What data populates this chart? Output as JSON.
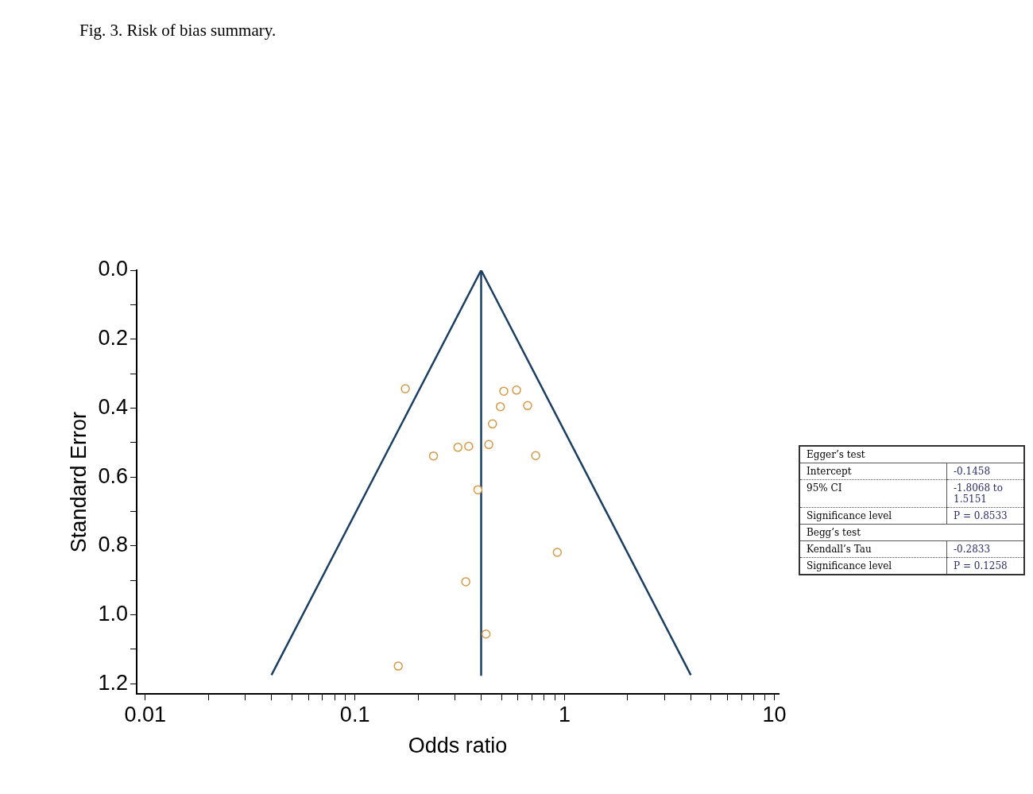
{
  "chart_data": {
    "type": "scatter",
    "xlabel": "Odds ratio",
    "ylabel": "Standard Error",
    "log": "x",
    "grid": false,
    "legend": false,
    "xlim": [
      0.0091,
      10.5
    ],
    "xticks": [
      {
        "value": 0.01,
        "label": "0.01"
      },
      {
        "value": 0.02,
        "label": null
      },
      {
        "value": 0.03,
        "label": null
      },
      {
        "value": 0.04,
        "label": null
      },
      {
        "value": 0.05,
        "label": null
      },
      {
        "value": 0.06,
        "label": null
      },
      {
        "value": 0.07,
        "label": null
      },
      {
        "value": 0.08,
        "label": null
      },
      {
        "value": 0.09,
        "label": null
      },
      {
        "value": 0.1,
        "label": "0.1"
      },
      {
        "value": 0.2,
        "label": null
      },
      {
        "value": 0.3,
        "label": null
      },
      {
        "value": 0.4,
        "label": null
      },
      {
        "value": 0.5,
        "label": null
      },
      {
        "value": 0.6,
        "label": null
      },
      {
        "value": 0.7,
        "label": null
      },
      {
        "value": 0.8,
        "label": null
      },
      {
        "value": 0.9,
        "label": null
      },
      {
        "value": 1,
        "label": "1"
      },
      {
        "value": 2,
        "label": null
      },
      {
        "value": 3,
        "label": null
      },
      {
        "value": 4,
        "label": null
      },
      {
        "value": 5,
        "label": null
      },
      {
        "value": 6,
        "label": null
      },
      {
        "value": 7,
        "label": null
      },
      {
        "value": 8,
        "label": null
      },
      {
        "value": 9,
        "label": null
      },
      {
        "value": 10,
        "label": "10"
      }
    ],
    "ylim": [
      1.23,
      0
    ],
    "yticks": [
      {
        "value": 0,
        "label": "0.0"
      },
      {
        "value": 0.1,
        "label": null
      },
      {
        "value": 0.2,
        "label": "0.2"
      },
      {
        "value": 0.3,
        "label": null
      },
      {
        "value": 0.4,
        "label": "0.4"
      },
      {
        "value": 0.5,
        "label": null
      },
      {
        "value": 0.6,
        "label": "0.6"
      },
      {
        "value": 0.7,
        "label": null
      },
      {
        "value": 0.8,
        "label": "0.8"
      },
      {
        "value": 0.9,
        "label": null
      },
      {
        "value": 1,
        "label": "1.0"
      },
      {
        "value": 1.1,
        "label": null
      },
      {
        "value": 1.2,
        "label": "1.2"
      }
    ],
    "series": [
      {
        "type": "scatter",
        "color": "#d49a45",
        "marker": "circle",
        "x": [
          0.174,
          0.513,
          0.59,
          0.494,
          0.666,
          0.453,
          0.31,
          0.349,
          0.435,
          0.237,
          0.728,
          0.386,
          0.923,
          0.338,
          0.422,
          0.161
        ],
        "values": [
          0.344,
          0.351,
          0.348,
          0.396,
          0.393,
          0.446,
          0.514,
          0.511,
          0.506,
          0.539,
          0.538,
          0.637,
          0.819,
          0.904,
          1.056,
          1.149
        ]
      },
      {
        "type": "line",
        "color": "#1b3f62",
        "marker": "none",
        "line_style": "solid",
        "x": [
          0.04,
          0.4,
          4
        ],
        "values": [
          1.175,
          0,
          1.175
        ]
      },
      {
        "type": "line",
        "color": "#1b3f62",
        "marker": "none",
        "line_style": "solid",
        "x": [
          0.4,
          0.4
        ],
        "values": [
          0,
          1.175
        ]
      }
    ],
    "annotations": [
      "Fig. 3. Risk of bias summary.",
      "Egger’s test",
      "Intercept",
      "-0.1458",
      "95% CI",
      "-1.8068 to 1.5151",
      "Significance level",
      "P = 0.8533",
      "Begg’s test",
      "Kendall’s Tau",
      "-0.2833",
      "Significance level",
      "P = 0.1258"
    ]
  }
}
